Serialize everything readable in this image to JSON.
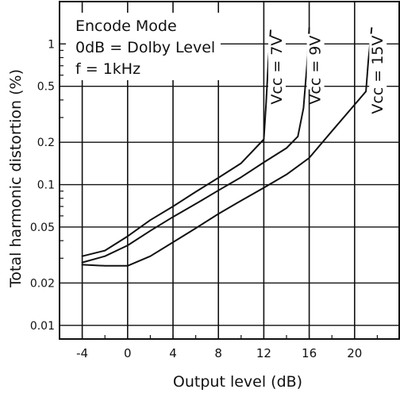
{
  "chart_data": {
    "type": "line",
    "title": "",
    "xlabel": "Output level (dB)",
    "ylabel": "Total harmonic distortion (%)",
    "x_scale": "linear",
    "y_scale": "log",
    "xlim": [
      -6,
      24
    ],
    "ylim": [
      0.008,
      2.0
    ],
    "x_ticks": [
      -4,
      0,
      4,
      8,
      12,
      16,
      20
    ],
    "x_tick_labels": [
      "-4",
      "0",
      "4",
      "8",
      "12",
      "16",
      "20"
    ],
    "y_ticks": [
      0.01,
      0.02,
      0.05,
      0.1,
      0.2,
      0.5,
      1
    ],
    "y_tick_labels": [
      "0.01",
      "0.02",
      "0.05",
      "0.1",
      "0.2",
      "0.5",
      "1"
    ],
    "grid": true,
    "annotation_lines": [
      "Encode Mode",
      "0dB = Dolby  Level",
      "f = 1kHz"
    ],
    "series": [
      {
        "name": "Vcc = 7V",
        "x": [
          -4,
          -2,
          0,
          2,
          4,
          6,
          8,
          10,
          12,
          12.2,
          12.4,
          12.6
        ],
        "y": [
          0.031,
          0.034,
          0.043,
          0.056,
          0.07,
          0.089,
          0.112,
          0.142,
          0.21,
          0.38,
          0.75,
          1.25
        ]
      },
      {
        "name": "Vcc = 9V",
        "x": [
          -4,
          -2,
          0,
          2,
          4,
          6,
          8,
          10,
          12,
          14,
          15,
          15.5,
          15.8,
          16
        ],
        "y": [
          0.028,
          0.031,
          0.037,
          0.047,
          0.059,
          0.073,
          0.091,
          0.113,
          0.144,
          0.182,
          0.22,
          0.35,
          0.7,
          1.3
        ]
      },
      {
        "name": "Vcc = 15V",
        "x": [
          -4,
          -2,
          0,
          2,
          4,
          6,
          8,
          10,
          12,
          14,
          16,
          18,
          20,
          21,
          21.2,
          21.5
        ],
        "y": [
          0.027,
          0.0265,
          0.0265,
          0.031,
          0.039,
          0.049,
          0.062,
          0.077,
          0.095,
          0.118,
          0.155,
          0.24,
          0.37,
          0.46,
          0.75,
          1.3
        ]
      }
    ]
  }
}
